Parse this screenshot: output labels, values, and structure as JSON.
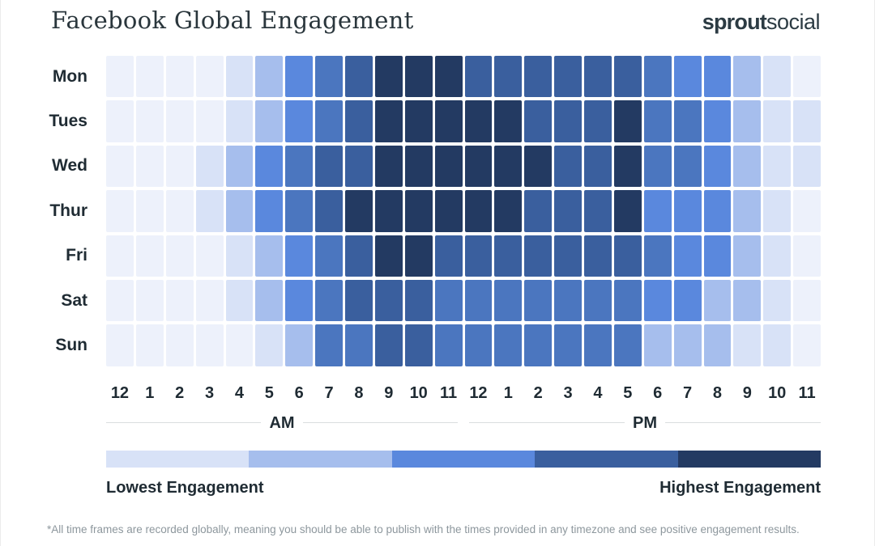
{
  "header": {
    "title": "Facebook Global Engagement",
    "logo_bold": "sprout",
    "logo_light": "social"
  },
  "axis": {
    "am_label": "AM",
    "pm_label": "PM"
  },
  "legend": {
    "lowest_label": "Lowest Engagement",
    "highest_label": "Highest Engagement"
  },
  "footnote": "*All time frames are recorded globally, meaning you should be able to publish with the times provided in any timezone and see positive engagement results.",
  "chart_data": {
    "type": "heatmap",
    "title": "Facebook Global Engagement",
    "days": [
      "Mon",
      "Tues",
      "Wed",
      "Thur",
      "Fri",
      "Sat",
      "Sun"
    ],
    "hours": [
      "12",
      "1",
      "2",
      "3",
      "4",
      "5",
      "6",
      "7",
      "8",
      "9",
      "10",
      "11",
      "12",
      "1",
      "2",
      "3",
      "4",
      "5",
      "6",
      "7",
      "8",
      "9",
      "10",
      "11"
    ],
    "level_scale": "0 = lowest engagement, 6 = highest engagement",
    "levels": [
      [
        0,
        0,
        0,
        0,
        1,
        2,
        3,
        4,
        5,
        6,
        6,
        6,
        5,
        5,
        5,
        5,
        5,
        5,
        4,
        3,
        3,
        2,
        1,
        0
      ],
      [
        0,
        0,
        0,
        0,
        1,
        2,
        3,
        4,
        5,
        6,
        6,
        6,
        6,
        6,
        5,
        5,
        5,
        6,
        4,
        4,
        3,
        2,
        1,
        1
      ],
      [
        0,
        0,
        0,
        1,
        2,
        3,
        4,
        5,
        5,
        6,
        6,
        6,
        6,
        6,
        6,
        5,
        5,
        6,
        4,
        4,
        3,
        2,
        1,
        1
      ],
      [
        0,
        0,
        0,
        1,
        2,
        3,
        4,
        5,
        6,
        6,
        6,
        6,
        6,
        6,
        5,
        5,
        5,
        6,
        3,
        3,
        3,
        2,
        1,
        0
      ],
      [
        0,
        0,
        0,
        0,
        1,
        2,
        3,
        4,
        5,
        6,
        6,
        5,
        5,
        5,
        5,
        5,
        5,
        5,
        4,
        3,
        3,
        2,
        1,
        0
      ],
      [
        0,
        0,
        0,
        0,
        1,
        2,
        3,
        4,
        5,
        5,
        5,
        4,
        4,
        4,
        4,
        4,
        4,
        4,
        3,
        3,
        2,
        2,
        1,
        0
      ],
      [
        0,
        0,
        0,
        0,
        0,
        1,
        2,
        4,
        4,
        5,
        5,
        4,
        4,
        4,
        4,
        4,
        4,
        4,
        2,
        2,
        2,
        1,
        1,
        0
      ]
    ],
    "palette": [
      "#EDF1FB",
      "#D8E2F7",
      "#A6BEED",
      "#5A88DD",
      "#4B76BF",
      "#3A5F9E",
      "#233A62"
    ],
    "legend_colors": [
      "#D8E2F7",
      "#A6BEED",
      "#5A88DD",
      "#3A5F9E",
      "#233A62"
    ]
  }
}
